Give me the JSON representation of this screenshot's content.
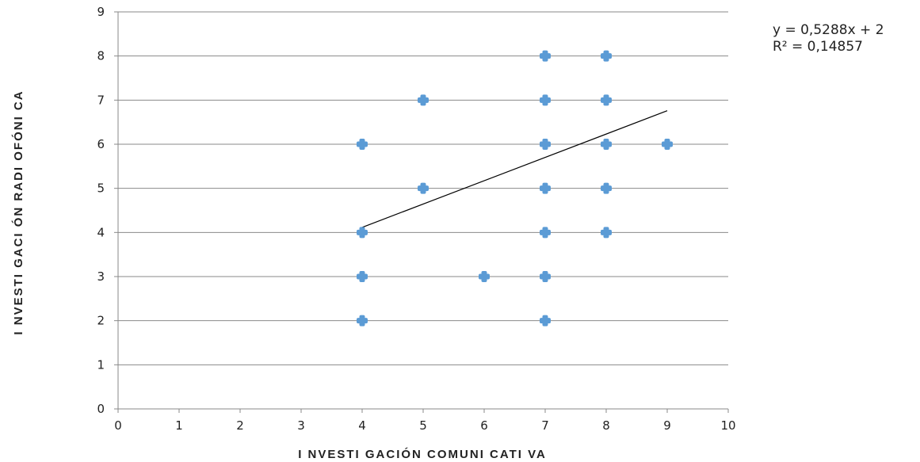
{
  "chart_data": {
    "type": "scatter",
    "xlabel": "I NVESTI GACIÓN COMUNI CATI VA",
    "ylabel": "I NVESTI GACI ÓN RADI OFÓNI CA",
    "xlim": [
      0,
      10
    ],
    "ylim": [
      0,
      9
    ],
    "x_ticks": [
      "0",
      "1",
      "2",
      "3",
      "4",
      "5",
      "6",
      "7",
      "8",
      "9",
      "10"
    ],
    "y_ticks": [
      "0",
      "1",
      "2",
      "3",
      "4",
      "5",
      "6",
      "7",
      "8",
      "9"
    ],
    "grid": "horizontal",
    "marker_color": "#5B9BD5",
    "trendline_color": "#000000",
    "points": [
      {
        "x": 4,
        "y": 6
      },
      {
        "x": 4,
        "y": 4
      },
      {
        "x": 4,
        "y": 3
      },
      {
        "x": 4,
        "y": 2
      },
      {
        "x": 5,
        "y": 7
      },
      {
        "x": 5,
        "y": 5
      },
      {
        "x": 6,
        "y": 3
      },
      {
        "x": 7,
        "y": 8
      },
      {
        "x": 7,
        "y": 7
      },
      {
        "x": 7,
        "y": 6
      },
      {
        "x": 7,
        "y": 5
      },
      {
        "x": 7,
        "y": 4
      },
      {
        "x": 7,
        "y": 3
      },
      {
        "x": 7,
        "y": 2
      },
      {
        "x": 8,
        "y": 8
      },
      {
        "x": 8,
        "y": 7
      },
      {
        "x": 8,
        "y": 6
      },
      {
        "x": 8,
        "y": 5
      },
      {
        "x": 8,
        "y": 4
      },
      {
        "x": 9,
        "y": 6
      }
    ],
    "trendline": {
      "slope": 0.5288,
      "intercept": 2,
      "x_range": [
        4,
        9
      ],
      "equation": "y = 0,5288x + 2",
      "r_squared": "R² = 0,14857"
    }
  }
}
